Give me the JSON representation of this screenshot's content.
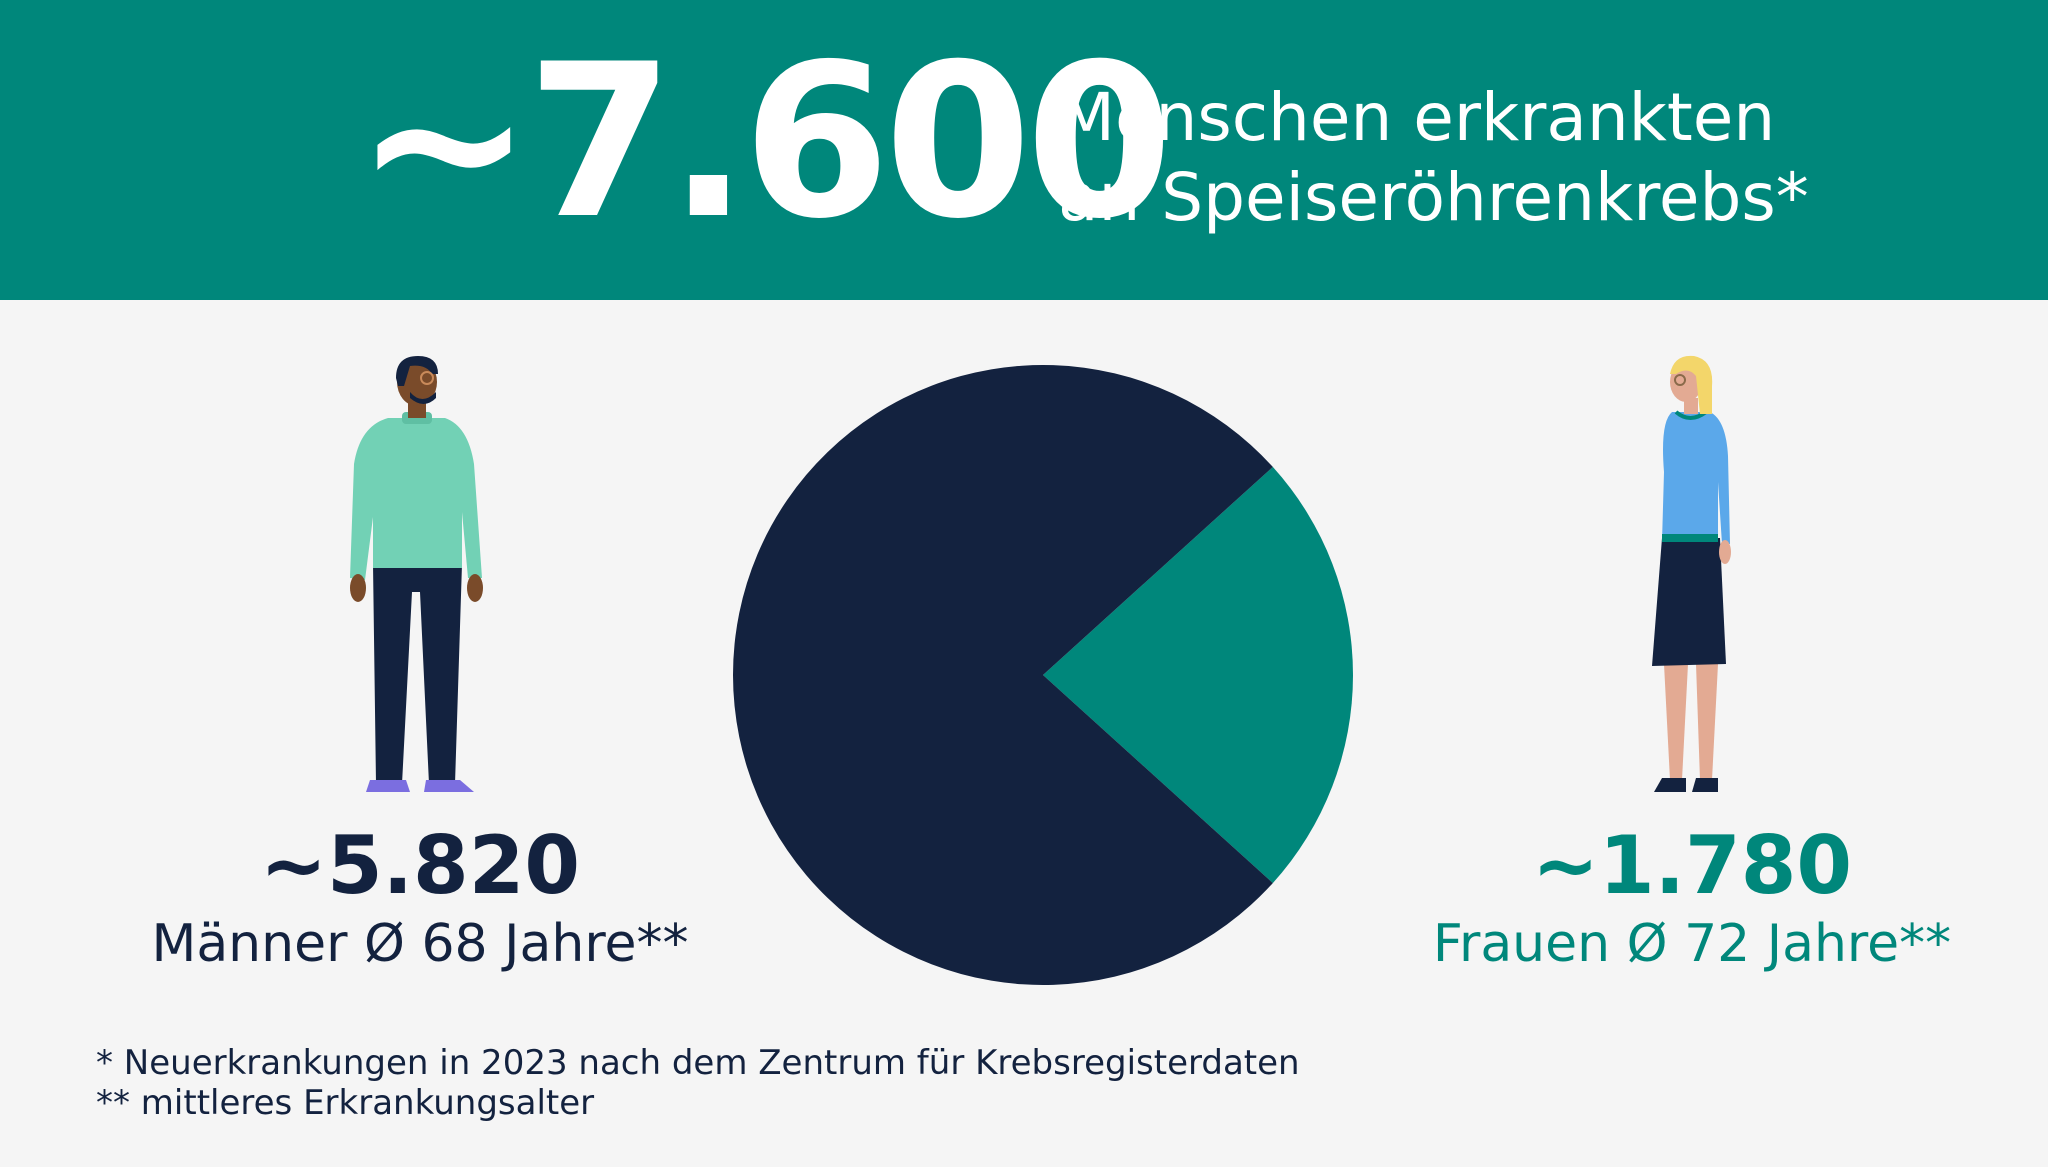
{
  "header": {
    "total_value": "~7.600",
    "headline_line1": "Menschen erkrankten",
    "headline_line2": "an Speiseröhrenkrebs*"
  },
  "men": {
    "value": "~5.820",
    "label": "Männer Ø 68 Jahre**"
  },
  "women": {
    "value": "~1.780",
    "label": "Frauen Ø 72 Jahre**"
  },
  "footnotes": {
    "line1": "* Neuerkrankungen in 2023 nach dem Zentrum für Krebsregisterdaten",
    "line2": "** mittleres Erkrankungsalter"
  },
  "colors": {
    "men": "#13223f",
    "women": "#00877b",
    "banner": "#00877b",
    "background": "#f5f5f5"
  },
  "chart_data": {
    "type": "pie",
    "categories": [
      "Männer",
      "Frauen"
    ],
    "values": [
      5820,
      1780
    ],
    "colors": [
      "#13223f",
      "#00877b"
    ]
  }
}
